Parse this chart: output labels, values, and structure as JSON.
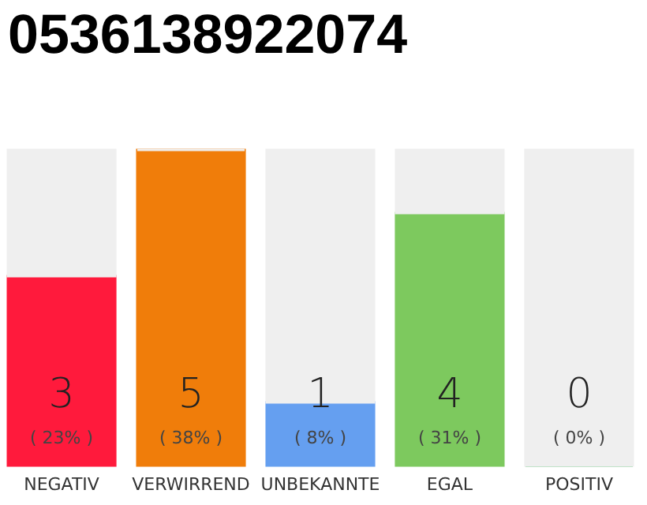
{
  "chart_data": {
    "type": "bar",
    "title": "0536138922074",
    "categories": [
      "NEGATIV",
      "VERWIRREND",
      "UNBEKANNTE",
      "EGAL",
      "POSITIV"
    ],
    "stacked": true,
    "series": [
      {
        "colors": [
          "#ff1a3c",
          "#f07d0a",
          "#659ff0",
          "#7dc95e",
          "#22aa44"
        ],
        "values": [
          3,
          5,
          1,
          4,
          0
        ],
        "value_labels": [
          "3",
          "5",
          "1",
          "4",
          "0"
        ]
      },
      {
        "color": "#efefef",
        "values": [
          2,
          0,
          4,
          1,
          5
        ]
      }
    ],
    "annotations": [
      "( 23% )",
      "( 38% )",
      "( 8% )",
      "( 31% )",
      "( 0% )"
    ]
  }
}
